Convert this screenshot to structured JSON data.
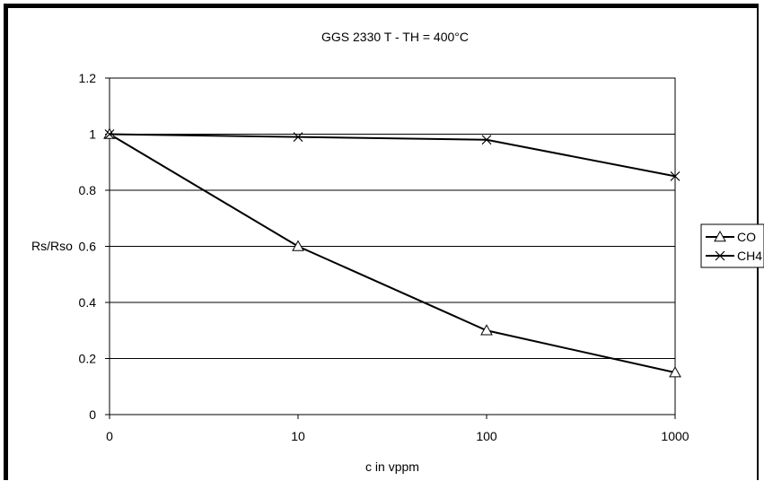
{
  "chart_data": {
    "type": "line",
    "title": "GGS 2330 T - TH = 400°C",
    "xlabel": "c in vppm",
    "ylabel": "Rs/Rso",
    "categories": [
      "0",
      "10",
      "100",
      "1000"
    ],
    "ylim": [
      0,
      1.2
    ],
    "yticks": [
      "0",
      "0.2",
      "0.4",
      "0.6",
      "0.8",
      "1",
      "1.2"
    ],
    "grid": true,
    "legend_position": "right",
    "series": [
      {
        "name": "CO",
        "marker": "triangle",
        "values": [
          1.0,
          0.6,
          0.3,
          0.15
        ]
      },
      {
        "name": "CH4",
        "marker": "x",
        "values": [
          1.0,
          0.99,
          0.98,
          0.85
        ]
      }
    ],
    "colors": {
      "line": "#000000",
      "background": "#ffffff"
    }
  }
}
